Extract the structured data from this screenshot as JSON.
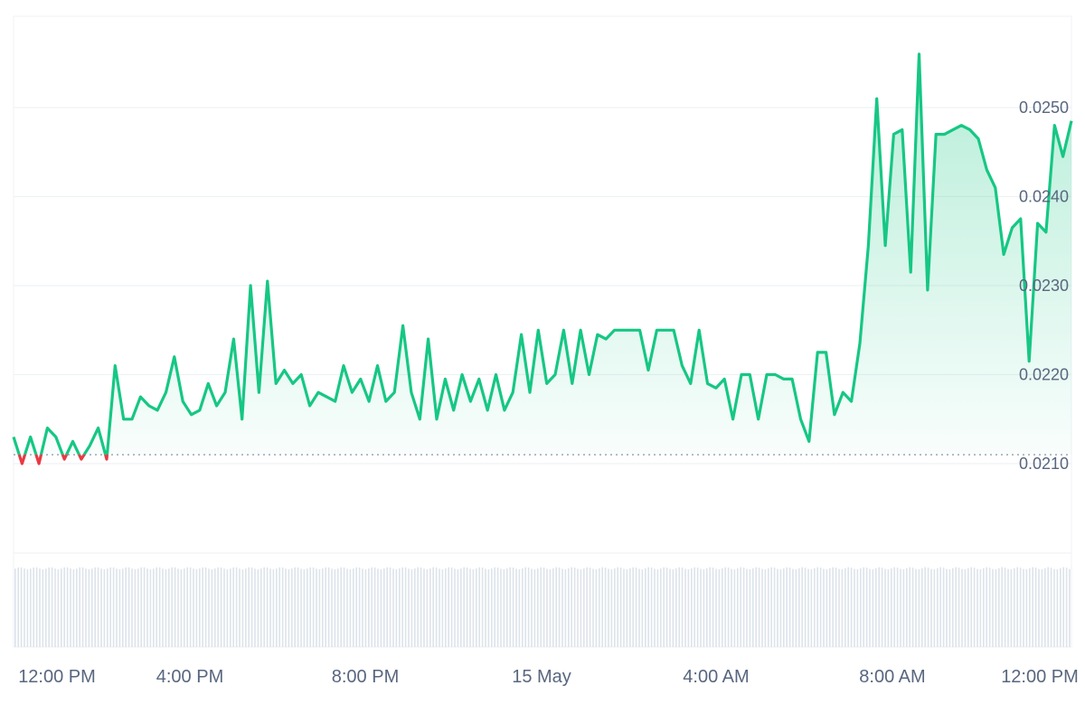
{
  "chart_data": {
    "type": "area",
    "title": "",
    "xlabel": "",
    "ylabel": "",
    "x_ticks": [
      "12:00 PM",
      "4:00 PM",
      "8:00 PM",
      "15 May",
      "4:00 AM",
      "8:00 AM",
      "12:00 PM"
    ],
    "y_ticks": [
      "0.0250",
      "0.0240",
      "0.0230",
      "0.0220",
      "0.0210"
    ],
    "ylim": [
      0.0205,
      0.0258
    ],
    "baseline": 0.0211,
    "grid": true,
    "legend": "none",
    "colors": {
      "up_line": "#16c784",
      "down_line": "#ea3943",
      "fill": "#16c784",
      "grid": "#eff2f5",
      "volume": "#dde3ea",
      "baseline": "#8a94a6"
    },
    "series": [
      {
        "x_hours": [
          0,
          0.2,
          0.4,
          0.6,
          0.8,
          1.0,
          1.2,
          1.4,
          1.6,
          1.8,
          2.0,
          2.2,
          2.4,
          2.6,
          2.8,
          3.0,
          3.2,
          3.4,
          3.6,
          3.8,
          4.0,
          4.2,
          4.4,
          4.6,
          4.8,
          5.0,
          5.2,
          5.4,
          5.6,
          5.8,
          6.0,
          6.2,
          6.4,
          6.6,
          6.8,
          7.0,
          7.2,
          7.4,
          7.6,
          7.8,
          8.0,
          8.2,
          8.4,
          8.6,
          8.8,
          9.0,
          9.2,
          9.4,
          9.6,
          9.8,
          10.0,
          10.2,
          10.4,
          10.6,
          10.8,
          11.0,
          11.2,
          11.4,
          11.6,
          11.8,
          12.0,
          12.2,
          12.4,
          12.6,
          12.8,
          13.0,
          13.2,
          13.4,
          13.6,
          13.8,
          14.0,
          14.2,
          14.4,
          14.6,
          14.8,
          15.0,
          15.2,
          15.4,
          15.6,
          15.8,
          16.0,
          16.2,
          16.4,
          16.6,
          16.8,
          17.0,
          17.2,
          17.4,
          17.6,
          17.8,
          18.0,
          18.2,
          18.4,
          18.6,
          18.8,
          19.0,
          19.2,
          19.4,
          19.6,
          19.8,
          20.0,
          20.2,
          20.4,
          20.6,
          20.8,
          21.0,
          21.2,
          21.4,
          21.6,
          21.8,
          22.0,
          22.2,
          22.4,
          22.6,
          22.8,
          23.0,
          23.2,
          23.4,
          23.6,
          23.8,
          24.0,
          24.2,
          24.4,
          24.6,
          24.8,
          25.0
        ],
        "y": [
          0.0213,
          0.021,
          0.0213,
          0.021,
          0.0214,
          0.0213,
          0.02105,
          0.02125,
          0.02105,
          0.0212,
          0.0214,
          0.02105,
          0.0221,
          0.0215,
          0.0215,
          0.02175,
          0.02165,
          0.0216,
          0.0218,
          0.0222,
          0.0217,
          0.02155,
          0.0216,
          0.0219,
          0.02165,
          0.0218,
          0.0224,
          0.0215,
          0.023,
          0.0218,
          0.02305,
          0.0219,
          0.02205,
          0.0219,
          0.022,
          0.02165,
          0.0218,
          0.02175,
          0.0217,
          0.0221,
          0.0218,
          0.02195,
          0.0217,
          0.0221,
          0.0217,
          0.0218,
          0.02255,
          0.0218,
          0.0215,
          0.0224,
          0.0215,
          0.02195,
          0.0216,
          0.022,
          0.0217,
          0.02195,
          0.0216,
          0.022,
          0.0216,
          0.0218,
          0.02245,
          0.0218,
          0.0225,
          0.0219,
          0.022,
          0.0225,
          0.0219,
          0.0225,
          0.022,
          0.02245,
          0.0224,
          0.0225,
          0.0225,
          0.0225,
          0.0225,
          0.02205,
          0.0225,
          0.0225,
          0.0225,
          0.0221,
          0.0219,
          0.0225,
          0.0219,
          0.02185,
          0.02195,
          0.0215,
          0.022,
          0.022,
          0.0215,
          0.022,
          0.022,
          0.02195,
          0.02195,
          0.0215,
          0.02125,
          0.02225,
          0.02225,
          0.02155,
          0.0218,
          0.0217,
          0.02235,
          0.02345,
          0.0251,
          0.02345,
          0.0247,
          0.02475,
          0.02315,
          0.0256,
          0.02295,
          0.0247,
          0.0247,
          0.02475,
          0.0248,
          0.02475,
          0.02465,
          0.0243,
          0.0241,
          0.02335,
          0.02365,
          0.02375,
          0.02215,
          0.0237,
          0.0236,
          0.0248,
          0.02445,
          0.02485
        ]
      }
    ]
  }
}
